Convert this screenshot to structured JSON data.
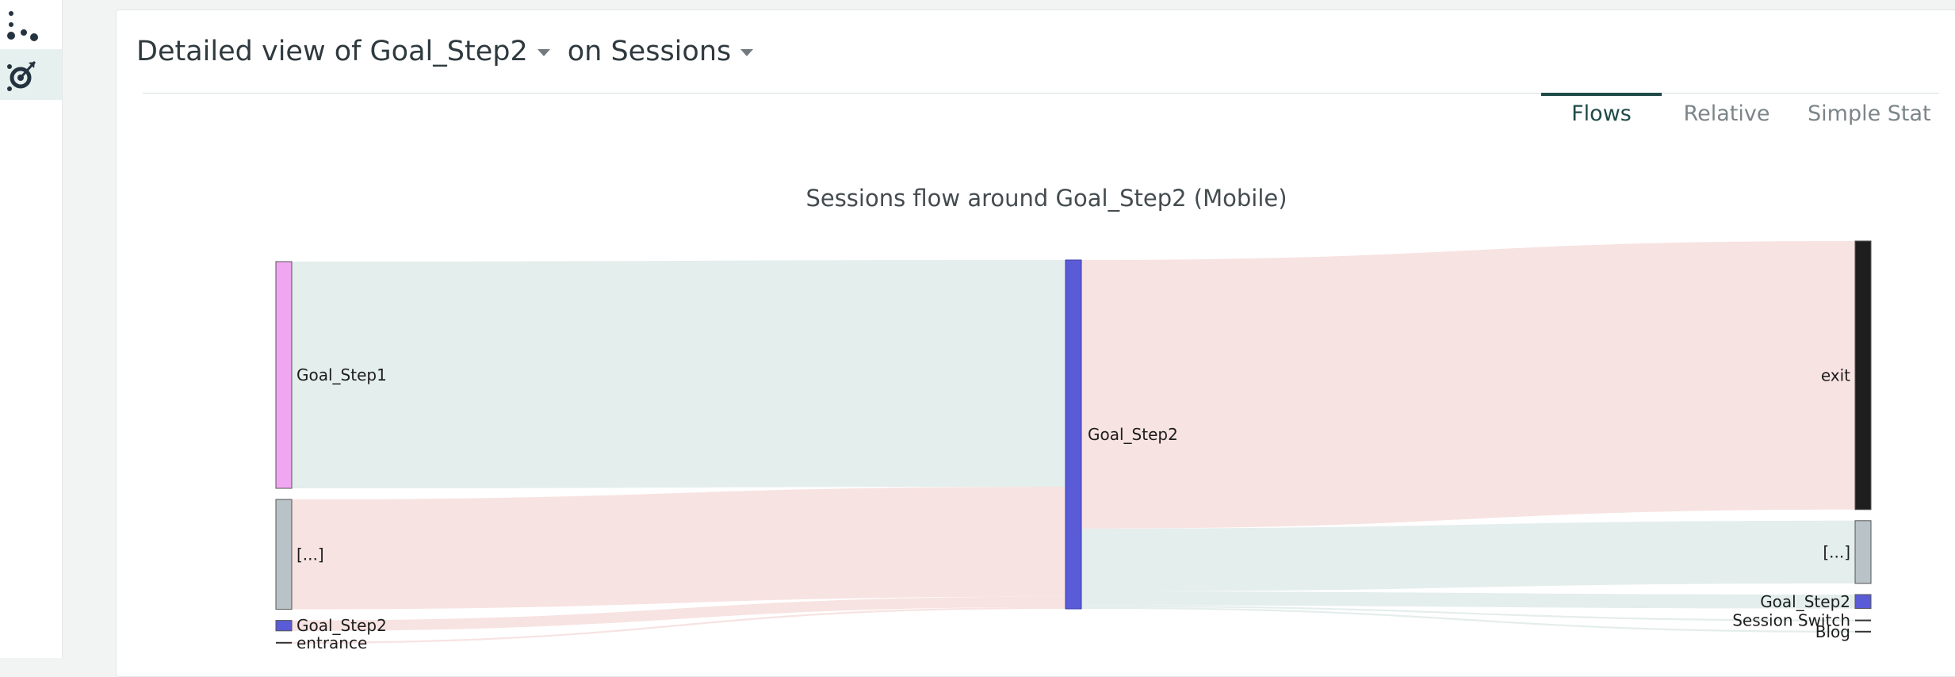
{
  "sidebar": {
    "items": [
      {
        "icon": "nodes-icon",
        "active": false
      },
      {
        "icon": "flow-target-icon",
        "active": true
      }
    ]
  },
  "header": {
    "metric_label": "Detailed view of Goal_Step2",
    "dimension_label": "on Sessions"
  },
  "tabs": [
    {
      "label": "Flows",
      "active": true
    },
    {
      "label": "Relative",
      "active": false
    },
    {
      "label": "Simple Stat",
      "active": false
    }
  ],
  "colors": {
    "goal_step1": "#f0a6f0",
    "other": "#b8c2c7",
    "goal_step2": "#5a5bd6",
    "exit": "#1e1e1e",
    "flow_teal": "#e4eeec",
    "flow_pink": "#f7e3e1",
    "accent": "#1e4a48"
  },
  "chart_data": {
    "type": "sankey",
    "title": "Sessions flow around Goal_Step2 (Mobile)",
    "center": {
      "name": "Goal_Step2",
      "value": 100
    },
    "incoming": [
      {
        "name": "Goal_Step1",
        "value": 65.0
      },
      {
        "name": "[...]",
        "value": 31.5
      },
      {
        "name": "Goal_Step2",
        "value": 3.0
      },
      {
        "name": "entrance",
        "value": 0.5
      }
    ],
    "outgoing": [
      {
        "name": "exit",
        "value": 77.0
      },
      {
        "name": "[...]",
        "value": 18.0
      },
      {
        "name": "Goal_Step2",
        "value": 4.0
      },
      {
        "name": "Session Switch",
        "value": 0.5
      },
      {
        "name": "Blog",
        "value": 0.5
      }
    ]
  }
}
